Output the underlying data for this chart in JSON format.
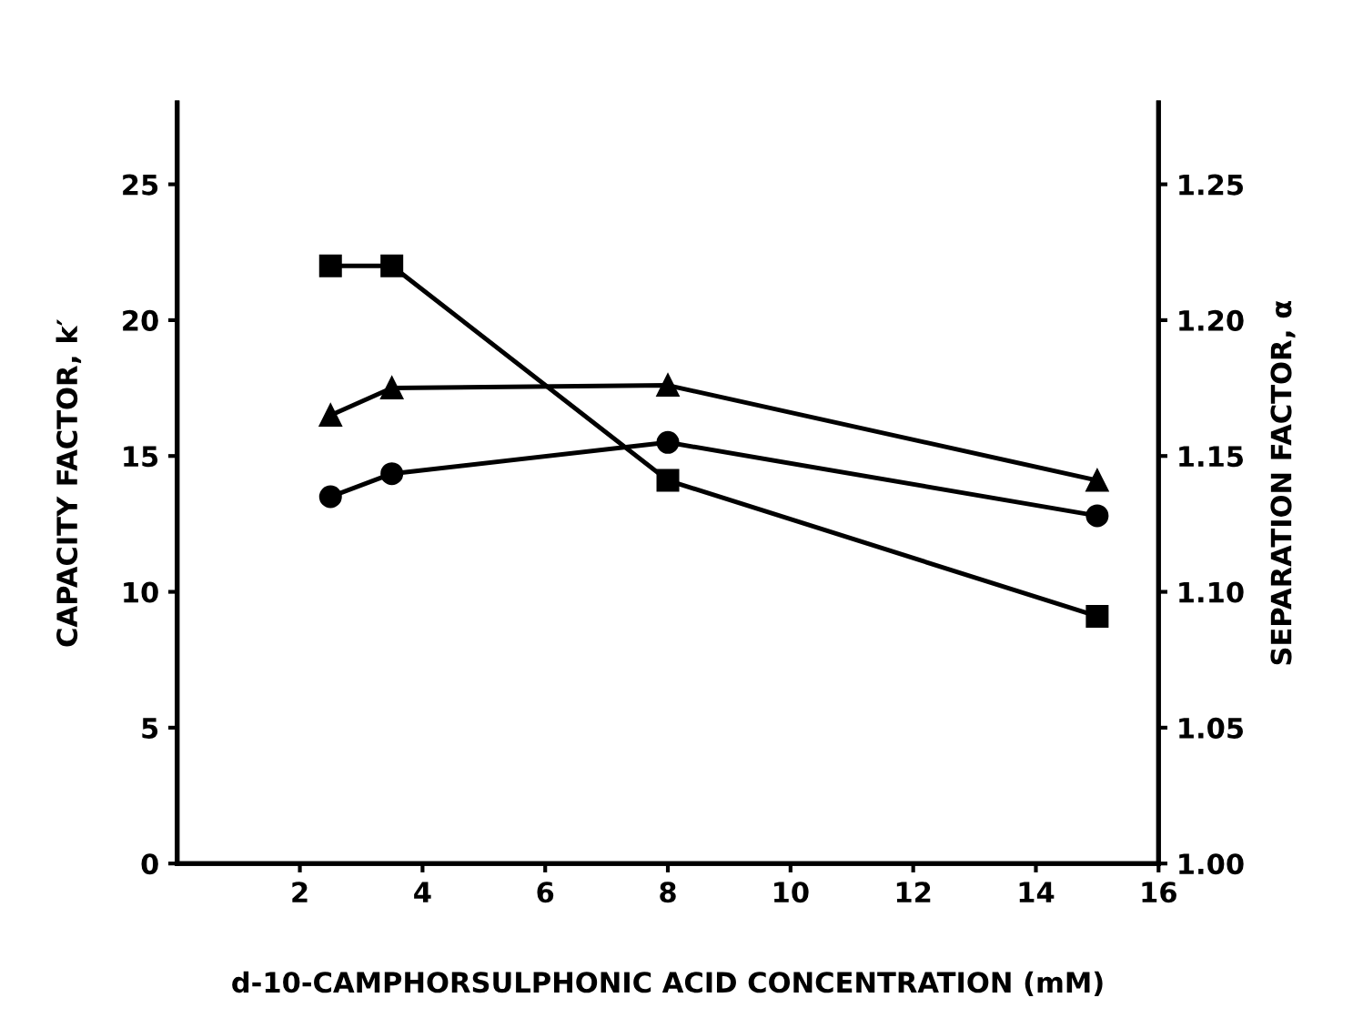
{
  "chart_data": {
    "type": "line",
    "xlabel": "d-10-CAMPHORSULPHONIC ACID CONCENTRATION (mM)",
    "ylabel": "CAPACITY FACTOR, k′",
    "y2label": "SEPARATION FACTOR, α",
    "xlim": [
      0,
      16
    ],
    "xticks": [
      2,
      4,
      6,
      8,
      10,
      12,
      14,
      16
    ],
    "ylim": [
      0,
      28
    ],
    "yticks": [
      0,
      5,
      10,
      15,
      20,
      25
    ],
    "y2lim": [
      1.0,
      1.28
    ],
    "y2ticks": [
      {
        "value": 1.0,
        "label": "1.00"
      },
      {
        "value": 1.05,
        "label": "1.05"
      },
      {
        "value": 1.1,
        "label": "1.10"
      },
      {
        "value": 1.15,
        "label": "1.15"
      },
      {
        "value": 1.2,
        "label": "1.20"
      },
      {
        "value": 1.25,
        "label": "1.25"
      }
    ],
    "grid": false,
    "line_style": "solid",
    "series": [
      {
        "color": "#000000",
        "marker": "square",
        "axis": "y2",
        "x": [
          2.5,
          3.5,
          8,
          15
        ],
        "values": [
          1.22,
          1.22,
          1.141,
          1.091
        ]
      },
      {
        "color": "#000000",
        "marker": "triangle",
        "x": [
          2.5,
          3.5,
          8,
          15
        ],
        "values": [
          16.5,
          17.5,
          17.6,
          14.1
        ]
      },
      {
        "color": "#000000",
        "marker": "circle",
        "x": [
          2.5,
          3.5,
          8,
          15
        ],
        "values": [
          13.5,
          14.35,
          15.5,
          12.8
        ]
      }
    ]
  }
}
